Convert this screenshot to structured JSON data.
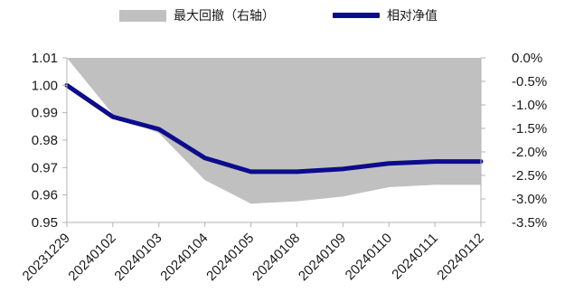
{
  "chart_data": {
    "type": "line",
    "legend": {
      "position": "top",
      "entries": [
        {
          "label": "最大回撤（右轴）",
          "kind": "area",
          "color": "#c0c0c0"
        },
        {
          "label": "相对净值",
          "kind": "line",
          "color": "#0c0c8c"
        }
      ]
    },
    "categories": [
      "20231229",
      "20240102",
      "20240103",
      "20240104",
      "20240105",
      "20240108",
      "20240109",
      "20240110",
      "20240111",
      "20240112"
    ],
    "left_axis": {
      "ylim": [
        0.95,
        1.01
      ],
      "ticks": [
        1.01,
        1.0,
        0.99,
        0.98,
        0.97,
        0.96,
        0.95
      ],
      "tick_labels": [
        "1.01",
        "1.00",
        "0.99",
        "0.98",
        "0.97",
        "0.96",
        "0.95"
      ]
    },
    "right_axis": {
      "ylim": [
        -3.5,
        0.0
      ],
      "unit": "%",
      "ticks": [
        0.0,
        -0.5,
        -1.0,
        -1.5,
        -2.0,
        -2.5,
        -3.0,
        -3.5
      ],
      "tick_labels": [
        "0.0%",
        "-0.5%",
        "-1.0%",
        "-1.5%",
        "-2.0%",
        "-2.5%",
        "-3.0%",
        "-3.5%"
      ]
    },
    "grid": false,
    "series": [
      {
        "name": "最大回撤（右轴）",
        "type": "area",
        "axis": "right",
        "color": "#c0c0c0",
        "values": [
          0.0,
          -1.2,
          -1.6,
          -2.6,
          -3.1,
          -3.05,
          -2.95,
          -2.75,
          -2.7,
          -2.7
        ]
      },
      {
        "name": "相对净值",
        "type": "line",
        "axis": "left",
        "color": "#0c0c8c",
        "values": [
          1.0,
          0.9885,
          0.984,
          0.9735,
          0.9685,
          0.9685,
          0.9695,
          0.9715,
          0.9722,
          0.9722
        ]
      }
    ]
  }
}
